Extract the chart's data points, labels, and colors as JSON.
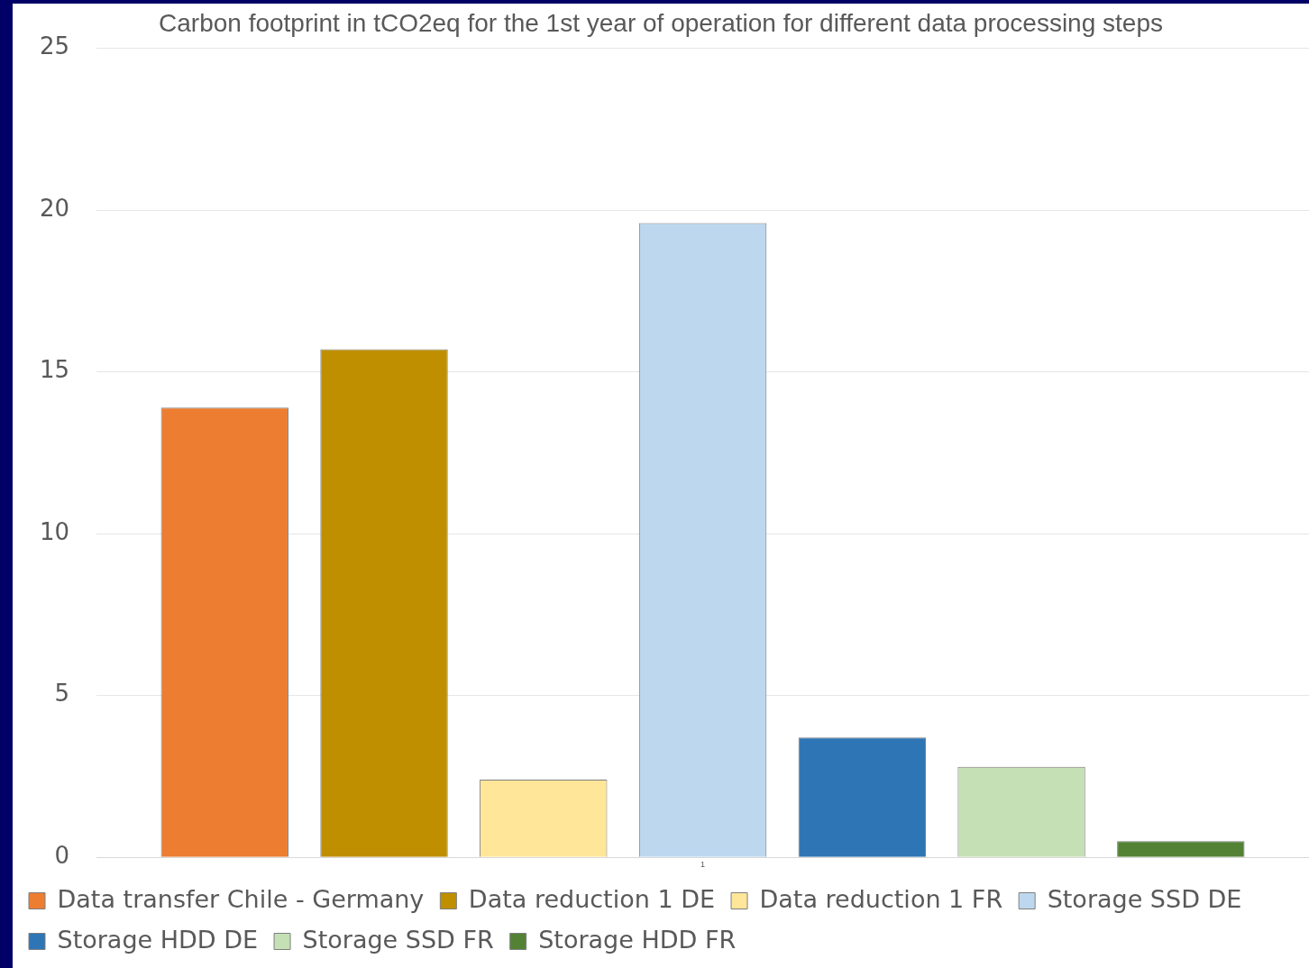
{
  "chart_data": {
    "type": "bar",
    "title": "Carbon footprint in tCO2eq for the 1st year of operation for different data processing steps",
    "categories": [
      "1"
    ],
    "series": [
      {
        "name": "Data transfer Chile - Germany",
        "color": "#ed7d31",
        "values": [
          13.9
        ]
      },
      {
        "name": "Data reduction 1 DE",
        "color": "#bf8f00",
        "values": [
          15.7
        ]
      },
      {
        "name": "Data reduction 1 FR",
        "color": "#ffe699",
        "values": [
          2.4
        ]
      },
      {
        "name": "Storage SSD DE",
        "color": "#bdd7ee",
        "values": [
          19.6
        ]
      },
      {
        "name": "Storage HDD DE",
        "color": "#2e75b6",
        "values": [
          3.7
        ]
      },
      {
        "name": "Storage SSD FR",
        "color": "#c5e0b4",
        "values": [
          2.8
        ]
      },
      {
        "name": "Storage HDD FR",
        "color": "#548235",
        "values": [
          0.5
        ]
      }
    ],
    "ylim": [
      0,
      25
    ],
    "yticks": [
      0,
      5,
      10,
      15,
      20,
      25
    ],
    "grid": "y",
    "legend": "bottom"
  }
}
